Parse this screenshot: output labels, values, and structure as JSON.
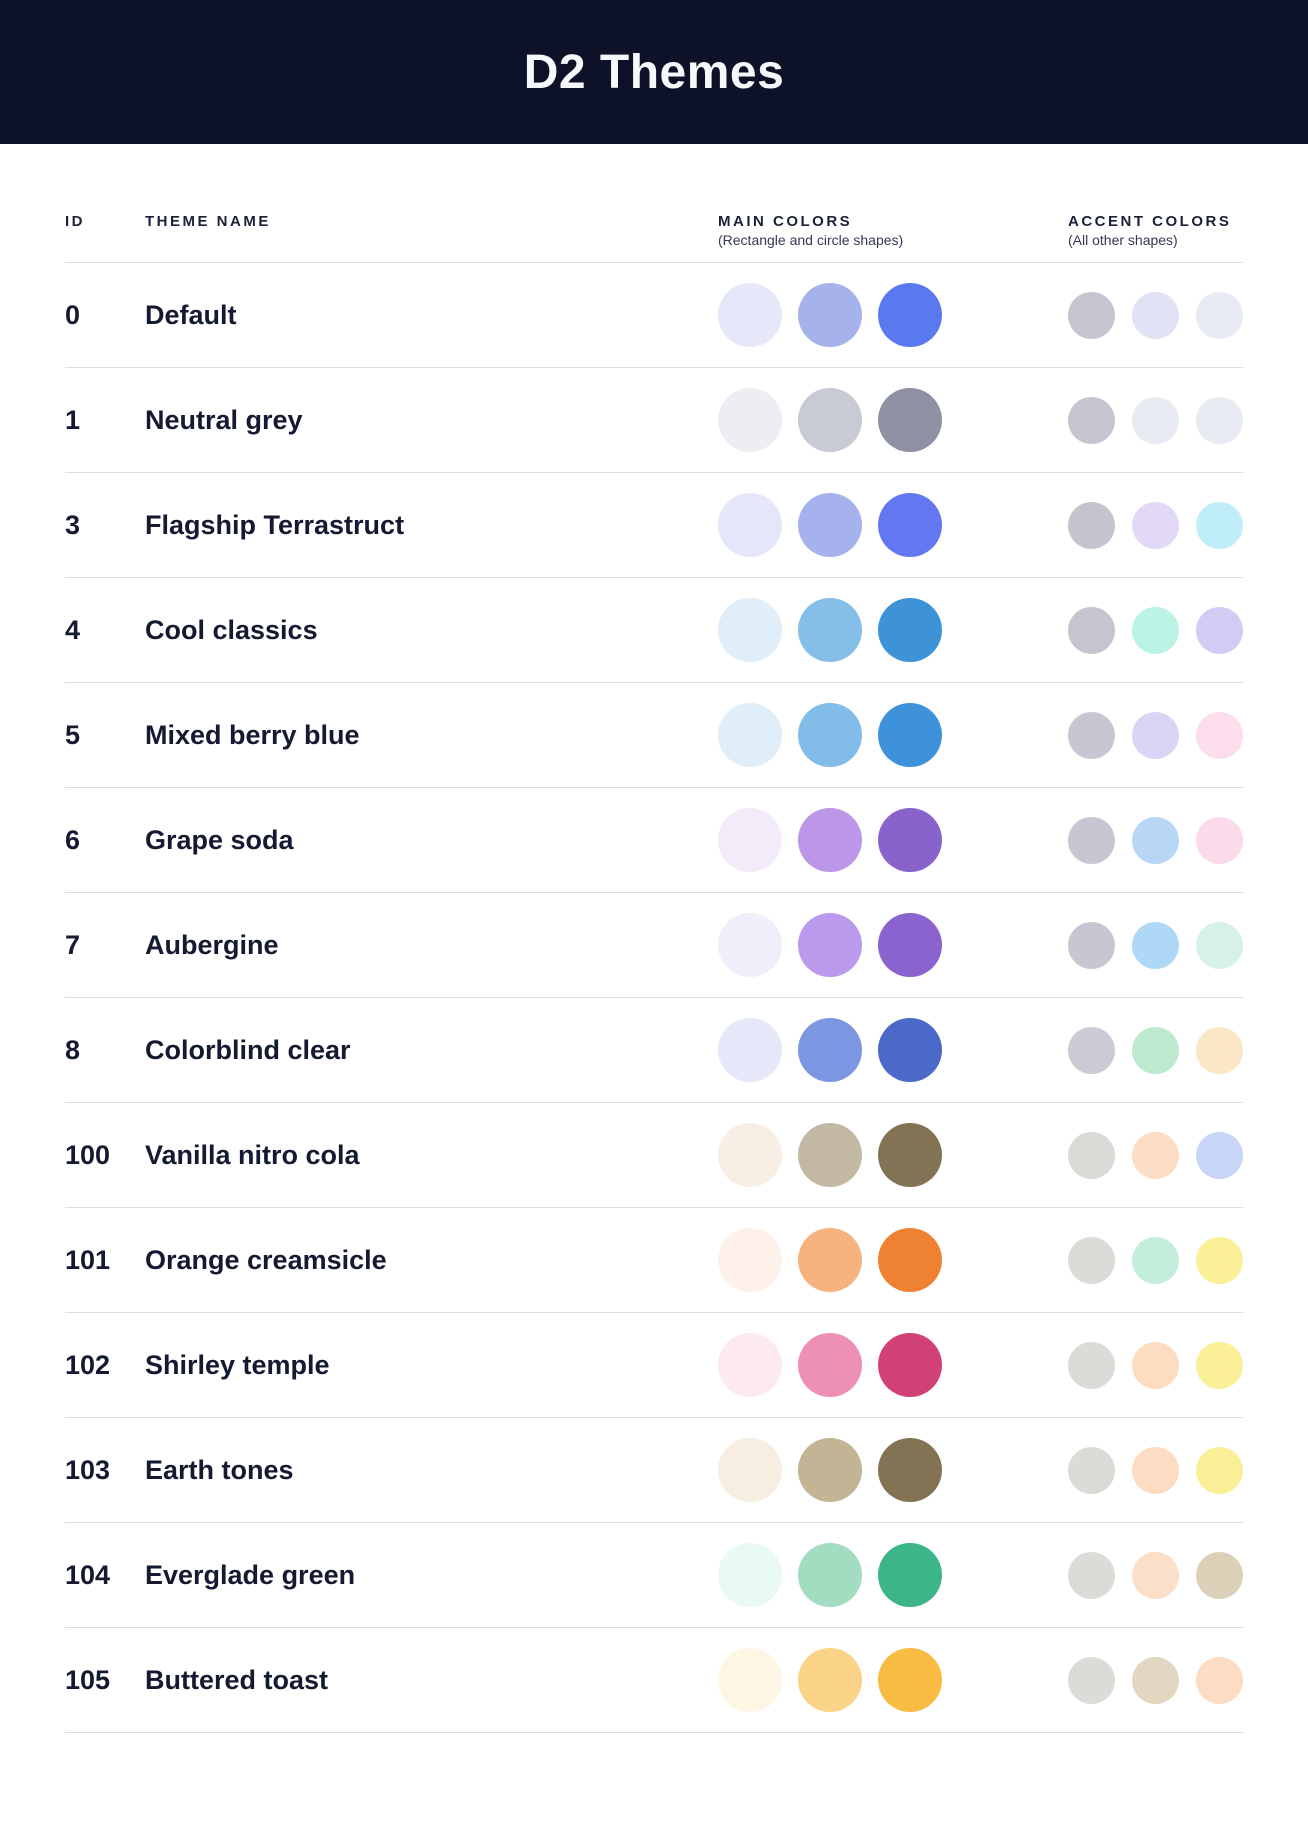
{
  "header": {
    "title": "D2 Themes"
  },
  "table": {
    "columns": {
      "id_label": "ID",
      "name_label": "THEME NAME",
      "main_label": "MAIN COLORS",
      "main_sublabel": "(Rectangle and circle shapes)",
      "accent_label": "ACCENT COLORS",
      "accent_sublabel": "(All other shapes)"
    },
    "rows": [
      {
        "id": "0",
        "name": "Default",
        "main_colors": [
          "#E5E8F8",
          "#A6B2EC",
          "#5B79EE"
        ],
        "accent_colors": [
          "#C4C5CF",
          "#E0E2F6",
          "#E9EBF4"
        ]
      },
      {
        "id": "1",
        "name": "Neutral grey",
        "main_colors": [
          "#ECEEF3",
          "#C8CAD4",
          "#8E91A3"
        ],
        "accent_colors": [
          "#C4C5CF",
          "#E9EBF2",
          "#E9EBF3"
        ]
      },
      {
        "id": "3",
        "name": "Flagship Terrastruct",
        "main_colors": [
          "#E4E7F9",
          "#A6B2EE",
          "#6378F0"
        ],
        "accent_colors": [
          "#C3C4CE",
          "#E2D9F7",
          "#C0EEF8"
        ]
      },
      {
        "id": "4",
        "name": "Cool classics",
        "main_colors": [
          "#DFEEF9",
          "#85BEE8",
          "#3E93D6"
        ],
        "accent_colors": [
          "#C4C5CE",
          "#BBF3E4",
          "#D3CBF3"
        ]
      },
      {
        "id": "5",
        "name": "Mixed berry blue",
        "main_colors": [
          "#DFEEF9",
          "#82BCE9",
          "#3E92DB"
        ],
        "accent_colors": [
          "#C6C7D1",
          "#DCD4F4",
          "#FBDDEC"
        ]
      },
      {
        "id": "6",
        "name": "Grape soda",
        "main_colors": [
          "#F2EBFA",
          "#BC97E9",
          "#8963CC"
        ],
        "accent_colors": [
          "#C6C7D0",
          "#B8D7F6",
          "#FBDBEA"
        ]
      },
      {
        "id": "7",
        "name": "Aubergine",
        "main_colors": [
          "#F1EDFA",
          "#BB99EC",
          "#8A63CE"
        ],
        "accent_colors": [
          "#C6C7D1",
          "#AFD8F6",
          "#D5F1E8"
        ]
      },
      {
        "id": "8",
        "name": "Colorblind clear",
        "main_colors": [
          "#E4E8F9",
          "#7D96E1",
          "#4A69C9"
        ],
        "accent_colors": [
          "#CACBD4",
          "#BDE9CF",
          "#FAE7C5"
        ]
      },
      {
        "id": "100",
        "name": "Vanilla nitro cola",
        "main_colors": [
          "#F7EFE4",
          "#C3B8A3",
          "#837355"
        ],
        "accent_colors": [
          "#DBDAD7",
          "#FCDDC5",
          "#C7D5F6"
        ]
      },
      {
        "id": "101",
        "name": "Orange creamsicle",
        "main_colors": [
          "#FEF1EA",
          "#F6B27F",
          "#EE8232"
        ],
        "accent_colors": [
          "#DCDBD8",
          "#C4EDDC",
          "#FAF098"
        ]
      },
      {
        "id": "102",
        "name": "Shirley temple",
        "main_colors": [
          "#FCE9F1",
          "#EC90B6",
          "#D14178"
        ],
        "accent_colors": [
          "#DCDBD8",
          "#FCDDC2",
          "#FAF097"
        ]
      },
      {
        "id": "103",
        "name": "Earth tones",
        "main_colors": [
          "#F7EEE2",
          "#C3B495",
          "#847254"
        ],
        "accent_colors": [
          "#DCDBD8",
          "#FCDCC3",
          "#F9EF97"
        ]
      },
      {
        "id": "104",
        "name": "Everglade green",
        "main_colors": [
          "#E8FAF1",
          "#A2DCC1",
          "#3CB588"
        ],
        "accent_colors": [
          "#DCDBD8",
          "#FCDFC8",
          "#DDD0B9"
        ]
      },
      {
        "id": "105",
        "name": "Buttered toast",
        "main_colors": [
          "#FEF6E5",
          "#FBD388",
          "#F7BC41"
        ],
        "accent_colors": [
          "#DCDBD8",
          "#E3D7C1",
          "#FCDCC2"
        ]
      }
    ]
  },
  "colors": {
    "header_bg": "#0E1228",
    "title_text": "#F6F8FC",
    "body_text": "#131A31",
    "divider": "#D9DBE7"
  }
}
